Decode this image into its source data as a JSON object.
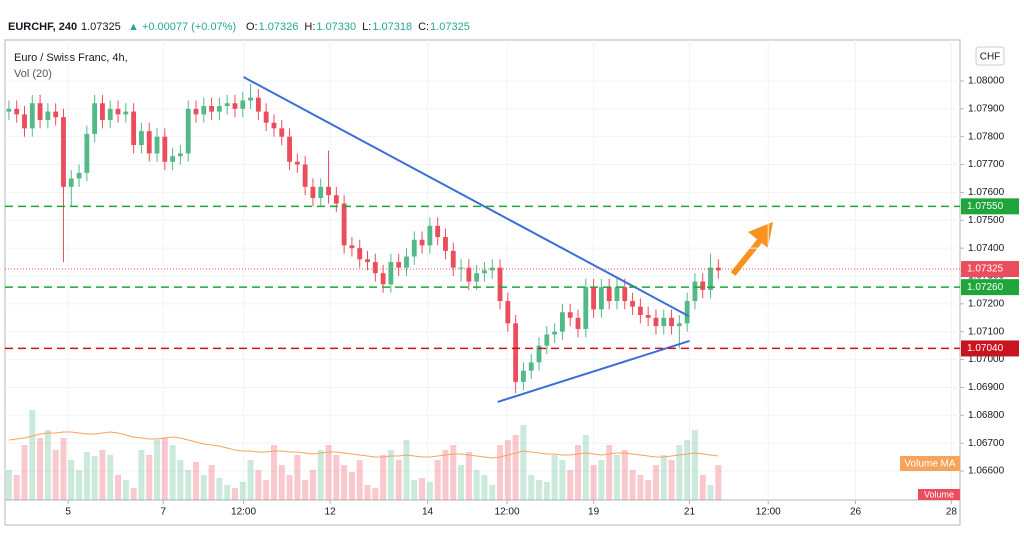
{
  "header": {
    "symbol": "EURCHF, 240",
    "last": "1.07325",
    "change": "▲ +0.00077 (+0.07%)",
    "ohlc": [
      {
        "key": "O:",
        "value": "1.07326"
      },
      {
        "key": "H:",
        "value": "1.07330"
      },
      {
        "key": "L:",
        "value": "1.07318"
      },
      {
        "key": "C:",
        "value": "1.07325"
      }
    ],
    "legend": [
      "Euro / Swiss Franc, 4h,",
      "Vol (20)"
    ],
    "currency_button": "CHF"
  },
  "chart_data": {
    "type": "candlestick",
    "up_color": "#53b987",
    "down_color": "#eb4d5c",
    "grid": true,
    "xlim": [
      -0.5,
      122
    ],
    "ylim": [
      1.06496,
      1.08147
    ],
    "xticks": [
      {
        "value": 7.6,
        "label": "5"
      },
      {
        "value": 19.8,
        "label": "7"
      },
      {
        "value": 30.1,
        "label": "12:00"
      },
      {
        "value": 41.2,
        "label": "12"
      },
      {
        "value": 53.7,
        "label": "14"
      },
      {
        "value": 63.9,
        "label": "12:00"
      },
      {
        "value": 75.0,
        "label": "19"
      },
      {
        "value": 87.3,
        "label": "21"
      },
      {
        "value": 97.4,
        "label": "12:00"
      },
      {
        "value": 108.6,
        "label": "26"
      },
      {
        "value": 120.9,
        "label": "28"
      }
    ],
    "yticks": [
      {
        "value": 1.08,
        "label": "1.08000"
      },
      {
        "value": 1.079,
        "label": "1.07900"
      },
      {
        "value": 1.078,
        "label": "1.07800"
      },
      {
        "value": 1.077,
        "label": "1.07700"
      },
      {
        "value": 1.076,
        "label": "1.07600"
      },
      {
        "value": 1.075,
        "label": "1.07500"
      },
      {
        "value": 1.074,
        "label": "1.07400"
      },
      {
        "value": 1.073,
        "label": "1.07300"
      },
      {
        "value": 1.072,
        "label": "1.07200"
      },
      {
        "value": 1.071,
        "label": "1.07100"
      },
      {
        "value": 1.07,
        "label": "1.07000"
      },
      {
        "value": 1.069,
        "label": "1.06900"
      },
      {
        "value": 1.068,
        "label": "1.06800"
      },
      {
        "value": 1.067,
        "label": "1.06700"
      },
      {
        "value": 1.066,
        "label": "1.06600"
      }
    ],
    "open": [
      1.0789,
      1.079,
      1.0788,
      1.0783,
      1.0792,
      1.0786,
      1.0789,
      1.0787,
      1.0762,
      1.0765,
      1.0767,
      1.0781,
      1.0792,
      1.0786,
      1.079,
      1.0788,
      1.0789,
      1.0777,
      1.0782,
      1.0774,
      1.078,
      1.0771,
      1.0773,
      1.0774,
      1.079,
      1.0788,
      1.0791,
      1.0789,
      1.0791,
      1.0792,
      1.079,
      1.0793,
      1.0794,
      1.0789,
      1.0785,
      1.0783,
      1.078,
      1.0771,
      1.077,
      1.0762,
      1.0758,
      1.0762,
      1.0759,
      1.0756,
      1.0741,
      1.074,
      1.0736,
      1.0735,
      1.0731,
      1.0727,
      1.0735,
      1.0733,
      1.0737,
      1.0743,
      1.0741,
      1.0748,
      1.0744,
      1.0739,
      1.0733,
      1.0733,
      1.0728,
      1.0731,
      1.0732,
      1.0733,
      1.0721,
      1.0713,
      1.0692,
      1.0696,
      1.0699,
      1.0705,
      1.0709,
      1.071,
      1.0717,
      1.0715,
      1.0711,
      1.0726,
      1.0718,
      1.0726,
      1.0721,
      1.0726,
      1.0721,
      1.0719,
      1.0716,
      1.0715,
      1.0712,
      1.0715,
      1.0712,
      1.0713,
      1.0721,
      1.0728,
      1.0725,
      1.0733
    ],
    "high": [
      1.0793,
      1.0793,
      1.0791,
      1.0795,
      1.0795,
      1.0792,
      1.0792,
      1.079,
      1.0768,
      1.077,
      1.0784,
      1.0795,
      1.0795,
      1.0793,
      1.0793,
      1.0792,
      1.0792,
      1.0785,
      1.0785,
      1.0783,
      1.0783,
      1.0776,
      1.0777,
      1.0793,
      1.0793,
      1.0794,
      1.0794,
      1.0794,
      1.0795,
      1.0795,
      1.0796,
      1.0799,
      1.0797,
      1.0792,
      1.0788,
      1.0786,
      1.0783,
      1.0774,
      1.0773,
      1.0765,
      1.0765,
      1.0775,
      1.0762,
      1.0759,
      1.0744,
      1.0743,
      1.0739,
      1.0738,
      1.0734,
      1.0738,
      1.0738,
      1.074,
      1.0746,
      1.0746,
      1.0751,
      1.0751,
      1.0747,
      1.0742,
      1.0736,
      1.0736,
      1.0734,
      1.0735,
      1.0736,
      1.0736,
      1.0724,
      1.0716,
      1.0699,
      1.0702,
      1.0708,
      1.0712,
      1.0713,
      1.072,
      1.072,
      1.0718,
      1.0729,
      1.0729,
      1.0729,
      1.0729,
      1.0729,
      1.0729,
      1.0724,
      1.0722,
      1.0719,
      1.0718,
      1.0718,
      1.0718,
      1.0716,
      1.0724,
      1.0731,
      1.0731,
      1.0738,
      1.0736
    ],
    "low": [
      1.0786,
      1.0785,
      1.078,
      1.078,
      1.0783,
      1.0783,
      1.0784,
      1.0735,
      1.0755,
      1.0762,
      1.0764,
      1.0778,
      1.0783,
      1.0783,
      1.0785,
      1.0785,
      1.0774,
      1.0774,
      1.0771,
      1.0771,
      1.0768,
      1.0768,
      1.077,
      1.0771,
      1.0785,
      1.0785,
      1.0786,
      1.0786,
      1.0788,
      1.0787,
      1.0787,
      1.079,
      1.0786,
      1.0782,
      1.078,
      1.0777,
      1.0768,
      1.0767,
      1.0759,
      1.0755,
      1.0755,
      1.0756,
      1.0753,
      1.0738,
      1.0737,
      1.0733,
      1.0732,
      1.0728,
      1.0724,
      1.0724,
      1.073,
      1.073,
      1.0734,
      1.0738,
      1.0738,
      1.0741,
      1.0736,
      1.073,
      1.0728,
      1.0725,
      1.0725,
      1.0728,
      1.0729,
      1.0718,
      1.071,
      1.0688,
      1.0689,
      1.0693,
      1.0696,
      1.0702,
      1.0706,
      1.0707,
      1.0712,
      1.0708,
      1.0708,
      1.0715,
      1.0715,
      1.0718,
      1.0718,
      1.0718,
      1.0716,
      1.0713,
      1.0712,
      1.0709,
      1.0709,
      1.0709,
      1.0704,
      1.071,
      1.0718,
      1.0722,
      1.0722,
      1.0729
    ],
    "close": [
      1.079,
      1.0788,
      1.0783,
      1.0792,
      1.0786,
      1.0789,
      1.0787,
      1.0762,
      1.0765,
      1.0767,
      1.0781,
      1.0792,
      1.0786,
      1.079,
      1.0788,
      1.0789,
      1.0777,
      1.0782,
      1.0774,
      1.078,
      1.0771,
      1.0773,
      1.0774,
      1.079,
      1.0788,
      1.0791,
      1.0789,
      1.0791,
      1.0792,
      1.079,
      1.0793,
      1.0794,
      1.0789,
      1.0785,
      1.0783,
      1.078,
      1.0771,
      1.077,
      1.0762,
      1.0758,
      1.0762,
      1.0759,
      1.0756,
      1.0741,
      1.074,
      1.0736,
      1.0735,
      1.0731,
      1.0727,
      1.0735,
      1.0733,
      1.0737,
      1.0743,
      1.0741,
      1.0748,
      1.0744,
      1.0739,
      1.0733,
      1.0733,
      1.0728,
      1.0731,
      1.0732,
      1.0733,
      1.0721,
      1.0713,
      1.0692,
      1.0696,
      1.0699,
      1.0705,
      1.0709,
      1.071,
      1.0717,
      1.0715,
      1.0711,
      1.0726,
      1.0718,
      1.0726,
      1.0721,
      1.0726,
      1.0721,
      1.0719,
      1.0716,
      1.0715,
      1.0712,
      1.0715,
      1.0712,
      1.0713,
      1.0721,
      1.0728,
      1.0725,
      1.0733,
      1.0732
    ],
    "volume_lim": [
      0,
      130
    ],
    "volume": [
      30,
      25,
      55,
      90,
      62,
      70,
      50,
      62,
      40,
      30,
      48,
      44,
      50,
      45,
      25,
      20,
      12,
      50,
      45,
      60,
      62,
      55,
      40,
      30,
      38,
      25,
      35,
      22,
      15,
      12,
      18,
      40,
      30,
      20,
      55,
      35,
      25,
      45,
      20,
      30,
      50,
      55,
      45,
      35,
      28,
      40,
      15,
      12,
      45,
      50,
      40,
      60,
      20,
      22,
      18,
      40,
      50,
      55,
      35,
      48,
      30,
      25,
      15,
      55,
      60,
      65,
      75,
      25,
      20,
      18,
      45,
      40,
      30,
      55,
      65,
      35,
      40,
      55,
      45,
      50,
      30,
      25,
      20,
      35,
      45,
      40,
      55,
      60,
      70,
      25,
      15,
      35
    ],
    "volume_ma": {
      "name": "Volume MA",
      "color": "#f7a35c",
      "values": [
        60,
        61,
        62,
        64,
        66,
        67,
        67,
        68,
        68,
        67,
        66,
        66,
        67,
        68,
        67,
        65,
        63,
        62,
        61,
        61,
        62,
        63,
        62,
        60,
        58,
        56,
        55,
        54,
        52,
        50,
        49,
        49,
        48,
        48,
        49,
        49,
        48,
        48,
        47,
        46,
        47,
        48,
        48,
        47,
        46,
        45,
        44,
        43,
        43,
        44,
        44,
        45,
        44,
        43,
        43,
        44,
        45,
        46,
        46,
        45,
        44,
        43,
        42,
        43,
        45,
        47,
        49,
        48,
        47,
        46,
        46,
        45,
        45,
        46,
        47,
        46,
        45,
        46,
        47,
        47,
        46,
        45,
        44,
        43,
        43,
        44,
        45,
        46,
        47,
        46,
        45,
        44
      ]
    },
    "volume_label": "Volume",
    "trendlines": [
      {
        "x": [
          30.1,
          87.2
        ],
        "y": [
          1.08014,
          1.07156
        ],
        "color": "#3a6fd8"
      },
      {
        "x": [
          62.7,
          87.3
        ],
        "y": [
          1.06848,
          1.07067
        ],
        "color": "#3a6fd8"
      }
    ],
    "levels": [
      {
        "value": 1.0755,
        "label": "1.07550",
        "color": "#1fa53a"
      },
      {
        "value": 1.0726,
        "label": "1.07260",
        "color": "#1fa53a"
      },
      {
        "value": 1.0704,
        "label": "1.07040",
        "color": "#c8141e"
      }
    ],
    "last_price": {
      "value": 1.07325,
      "label": "1.07325",
      "color": "#eb4d5c"
    }
  }
}
